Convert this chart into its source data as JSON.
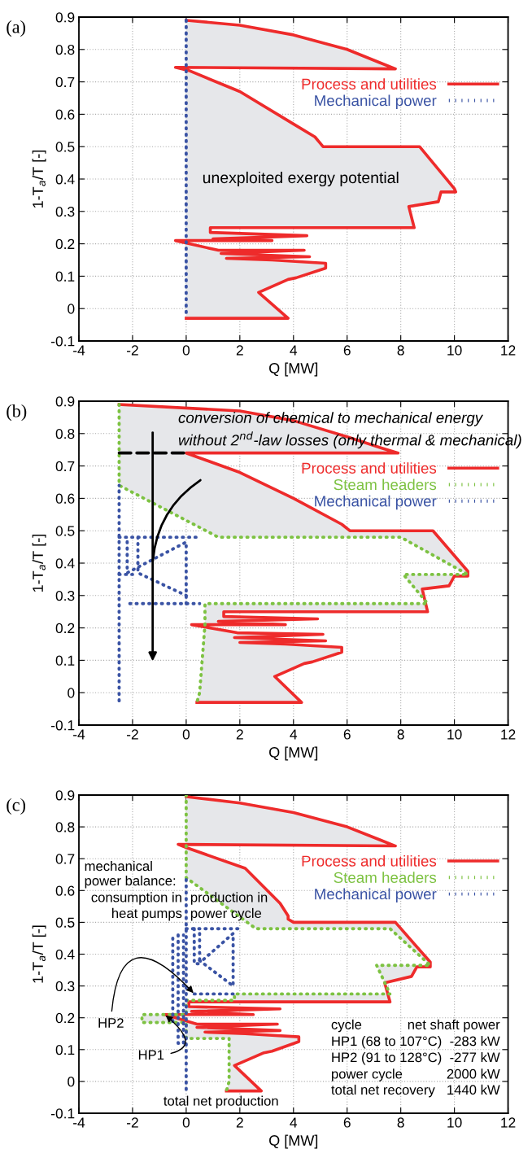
{
  "chart_data": [
    {
      "type": "line",
      "title": "(a)",
      "xlabel": "Q [MW]",
      "ylabel": "1-T$_{a}$/T [-]",
      "xlim": [
        -4,
        12
      ],
      "ylim": [
        -0.1,
        0.9
      ],
      "xticks": [
        -4,
        -2,
        0,
        2,
        4,
        6,
        8,
        10,
        12
      ],
      "yticks": [
        -0.1,
        0,
        0.1,
        0.2,
        0.3,
        0.4,
        0.5,
        0.6,
        0.7,
        0.8,
        0.9
      ],
      "grid": true,
      "legend": "top right",
      "annotations": [
        "unexploited exergy potential"
      ],
      "series": [
        {
          "name": "Process and utilities",
          "color": "#ee2b2b",
          "line_style": "solid",
          "x": [
            0,
            2,
            4,
            6,
            7.2,
            7.8,
            -0.4,
            0.1,
            2,
            4,
            4.8,
            5,
            5.1,
            8.7,
            10,
            10.05,
            9.5,
            9.4,
            8.3,
            8.5,
            0.9,
            0.9,
            4.5,
            1.0,
            3.2,
            -0.4,
            1.2,
            4.4,
            1.3,
            4.6,
            1.5,
            3.2,
            5.2,
            5.2,
            4.1,
            3.8,
            2.7,
            3.8,
            0
          ],
          "values": [
            0.89,
            0.875,
            0.845,
            0.8,
            0.76,
            0.74,
            0.745,
            0.735,
            0.67,
            0.57,
            0.53,
            0.51,
            0.5,
            0.5,
            0.37,
            0.36,
            0.36,
            0.33,
            0.315,
            0.25,
            0.25,
            0.235,
            0.225,
            0.215,
            0.21,
            0.21,
            0.18,
            0.18,
            0.17,
            0.16,
            0.155,
            0.15,
            0.14,
            0.125,
            0.095,
            0.09,
            0.05,
            -0.03,
            -0.03
          ]
        },
        {
          "name": "Mechanical power",
          "color": "#3a53a4",
          "line_style": "dotted",
          "x": [
            0,
            0
          ],
          "values": [
            0.89,
            -0.025
          ]
        }
      ]
    },
    {
      "type": "line",
      "title": "(b)",
      "xlabel": "Q [MW]",
      "ylabel": "1-T$_{a}$/T [-]",
      "xlim": [
        -4,
        12
      ],
      "ylim": [
        -0.1,
        0.9
      ],
      "xticks": [
        -4,
        -2,
        0,
        2,
        4,
        6,
        8,
        10,
        12
      ],
      "yticks": [
        -0.1,
        0,
        0.1,
        0.2,
        0.3,
        0.4,
        0.5,
        0.6,
        0.7,
        0.8,
        0.9
      ],
      "grid": true,
      "legend": "top right",
      "annotations": [
        "conversion of chemical to mechanical energy",
        "without 2$^{nd}$-law losses (only thermal & mechanical)"
      ],
      "series": [
        {
          "name": "Process and utilities",
          "color": "#ee2b2b",
          "line_style": "solid",
          "x": [
            -2.5,
            2,
            4,
            6,
            7.3,
            7.9,
            0,
            2,
            4,
            5.8,
            6.1,
            9.2,
            10.5,
            10.5,
            10,
            9.8,
            8.8,
            9,
            1.4,
            1.4,
            4.9,
            1.2,
            3.7,
            0.2,
            1.9,
            5.1,
            1.8,
            5.2,
            2,
            3.7,
            5.8,
            5.8,
            4.7,
            4.4,
            3.3,
            4.3,
            0.4
          ],
          "values": [
            0.89,
            0.87,
            0.84,
            0.79,
            0.755,
            0.74,
            0.74,
            0.68,
            0.6,
            0.52,
            0.5,
            0.5,
            0.375,
            0.36,
            0.36,
            0.33,
            0.32,
            0.25,
            0.25,
            0.235,
            0.228,
            0.22,
            0.21,
            0.21,
            0.185,
            0.18,
            0.17,
            0.16,
            0.155,
            0.15,
            0.14,
            0.125,
            0.095,
            0.09,
            0.05,
            -0.03,
            -0.03
          ]
        },
        {
          "name": "Steam headers",
          "color": "#7dc242",
          "line_style": "dotted",
          "x": [
            -2.5,
            -2.5,
            1.2,
            8,
            10.5,
            8.1,
            9,
            0.7,
            0.7,
            0.5,
            0.4
          ],
          "values": [
            0.89,
            0.64,
            0.48,
            0.48,
            0.365,
            0.365,
            0.275,
            0.275,
            0.21,
            0,
            -0.03
          ]
        },
        {
          "name": "Mechanical power",
          "color": "#3a53a4",
          "line_style": "dotted",
          "x": [
            -2.5,
            -2.5
          ],
          "values": [
            -0.025,
            0.64
          ]
        },
        {
          "color": "#3a53a4",
          "line_style": "dotted",
          "x": [
            -2.5,
            0.5
          ],
          "values": [
            0.48,
            0.48
          ]
        },
        {
          "color": "#3a53a4",
          "line_style": "dotted",
          "x": [
            -2.1,
            0.5
          ],
          "values": [
            0.275,
            0.275
          ]
        },
        {
          "color": "#3a53a4",
          "line_style": "dotted",
          "x": [
            0,
            0,
            -2.2,
            -2.2
          ],
          "values": [
            0.275,
            0.465,
            0.37,
            0.48
          ]
        },
        {
          "color": "#3a53a4",
          "line_style": "dotted",
          "x": [
            -1.8,
            -1.8,
            0
          ],
          "values": [
            0.48,
            0.37,
            0.3
          ]
        },
        {
          "color": "#3a53a4",
          "line_style": "dotted",
          "x": [
            -2.5,
            -2.0
          ],
          "values": [
            0.365,
            0.365
          ]
        },
        {
          "color": "#000000",
          "line_style": "dashed",
          "x": [
            -2.5,
            0
          ],
          "values": [
            0.74,
            0.74
          ]
        }
      ]
    },
    {
      "type": "line",
      "title": "(c)",
      "xlabel": "Q [MW]",
      "ylabel": "1-T$_{a}$/T [-]",
      "xlim": [
        -4,
        12
      ],
      "ylim": [
        -0.1,
        0.9
      ],
      "xticks": [
        -4,
        -2,
        0,
        2,
        4,
        6,
        8,
        10,
        12
      ],
      "yticks": [
        -0.1,
        0,
        0.1,
        0.2,
        0.3,
        0.4,
        0.5,
        0.6,
        0.7,
        0.8,
        0.9
      ],
      "grid": true,
      "legend": "top right",
      "annotations": [
        "mechanical\npower balance:",
        "consumption in",
        "heat pumps",
        "production in",
        "power cycle",
        {
          "text": "HP2",
          "x": 0.3,
          "y": 0.275
        },
        {
          "text": "HP1",
          "x": -0.8,
          "y": 0.21
        },
        "total net production",
        "cycle",
        "net shaft power",
        "HP1 (68 to 107°C)",
        "-283 kW",
        "HP2 (91 to 128°C)",
        "-277 kW",
        "power cycle",
        "2000 kW",
        "total net recovery",
        "1440 kW"
      ],
      "series": [
        {
          "name": "Process and utilities",
          "color": "#ee2b2b",
          "line_style": "solid",
          "x": [
            0,
            2,
            4,
            6,
            7.2,
            7.8,
            -0.3,
            0,
            2.2,
            3.5,
            3.8,
            3.8,
            4,
            7.8,
            9.1,
            9.1,
            8.6,
            8.4,
            7.4,
            7.6,
            0.1,
            0.1,
            3.5,
            0.2,
            2.5,
            -0.8,
            0.4,
            3.4,
            0.4,
            3.5,
            0.7,
            2.2,
            4.2,
            4.2,
            3.2,
            2.9,
            1.8,
            2.8,
            1.5
          ],
          "values": [
            0.895,
            0.875,
            0.845,
            0.8,
            0.76,
            0.74,
            0.745,
            0.735,
            0.67,
            0.56,
            0.52,
            0.51,
            0.5,
            0.5,
            0.375,
            0.36,
            0.36,
            0.33,
            0.31,
            0.25,
            0.25,
            0.235,
            0.228,
            0.22,
            0.21,
            0.21,
            0.18,
            0.18,
            0.17,
            0.16,
            0.155,
            0.15,
            0.14,
            0.125,
            0.095,
            0.09,
            0.05,
            -0.03,
            -0.03
          ]
        },
        {
          "name": "Steam headers",
          "color": "#7dc242",
          "line_style": "dotted",
          "x": [
            0,
            0,
            2.6,
            7.6,
            9.1,
            7.1,
            7.6,
            1.8,
            1.8,
            0,
            0,
            -1.65,
            -1.65,
            0,
            0,
            1.6,
            1.6,
            1.5
          ],
          "values": [
            0.9,
            0.64,
            0.48,
            0.48,
            0.365,
            0.365,
            0.275,
            0.275,
            0.255,
            0.255,
            0.21,
            0.21,
            0.185,
            0.185,
            0.135,
            0.135,
            0,
            -0.03
          ]
        },
        {
          "name": "Mechanical power",
          "color": "#3a53a4",
          "line_style": "dotted",
          "x": [
            0,
            0
          ],
          "values": [
            -0.025,
            0.64
          ]
        },
        {
          "color": "#3a53a4",
          "line_style": "dotted",
          "x": [
            -0.5,
            -0.5
          ],
          "values": [
            0.45,
            0.18
          ]
        },
        {
          "color": "#3a53a4",
          "line_style": "dotted",
          "x": [
            -0.3,
            -0.3,
            -0.1,
            -0.1
          ],
          "values": [
            0.46,
            0.12,
            0.12,
            0.46
          ]
        },
        {
          "color": "#3a53a4",
          "line_style": "dotted",
          "x": [
            0,
            2.0
          ],
          "values": [
            0.48,
            0.48
          ]
        },
        {
          "color": "#3a53a4",
          "line_style": "dotted",
          "x": [
            0.3,
            0.3,
            0.5,
            0.5
          ],
          "values": [
            0.48,
            0.37,
            0.37,
            0.48
          ]
        },
        {
          "color": "#3a53a4",
          "line_style": "dotted",
          "x": [
            0.5,
            1.75,
            1.75,
            0.6
          ],
          "values": [
            0.38,
            0.3,
            0.465,
            0.38
          ]
        },
        {
          "color": "#3a53a4",
          "line_style": "dotted",
          "x": [
            0.3,
            1.75
          ],
          "values": [
            0.275,
            0.275
          ]
        }
      ]
    }
  ]
}
